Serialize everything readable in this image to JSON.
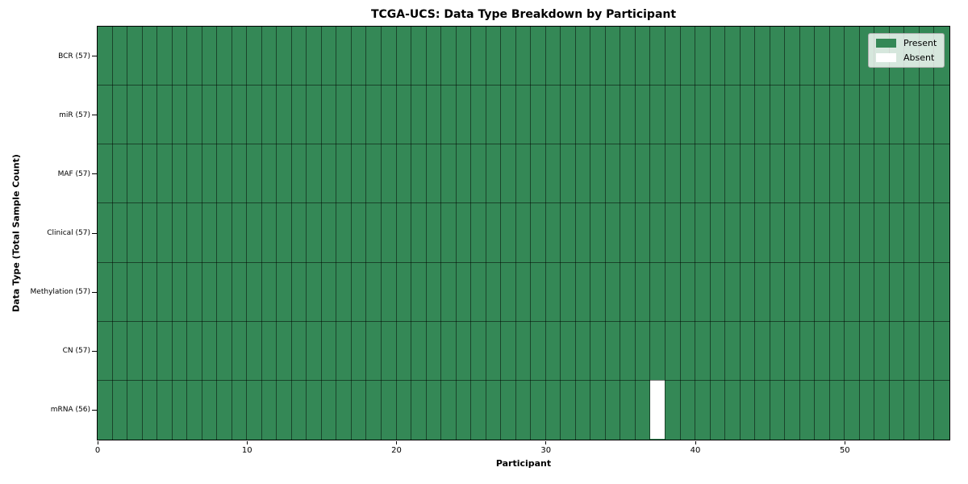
{
  "chart_data": {
    "type": "heatmap",
    "title": "TCGA-UCS: Data Type Breakdown by Participant",
    "xlabel": "Participant",
    "ylabel": "Data Type (Total Sample Count)",
    "n_participants": 57,
    "x_range": [
      0,
      57
    ],
    "x_ticks": [
      0,
      10,
      20,
      30,
      40,
      50
    ],
    "grid": true,
    "rows": [
      {
        "label": "BCR (57)",
        "data_type": "BCR",
        "total_samples": 57,
        "absent_participants": []
      },
      {
        "label": "miR (57)",
        "data_type": "miR",
        "total_samples": 57,
        "absent_participants": []
      },
      {
        "label": "MAF (57)",
        "data_type": "MAF",
        "total_samples": 57,
        "absent_participants": []
      },
      {
        "label": "Clinical (57)",
        "data_type": "Clinical",
        "total_samples": 57,
        "absent_participants": []
      },
      {
        "label": "Methylation (57)",
        "data_type": "Methylation",
        "total_samples": 57,
        "absent_participants": []
      },
      {
        "label": "CN (57)",
        "data_type": "CN",
        "total_samples": 57,
        "absent_participants": []
      },
      {
        "label": "mRNA (56)",
        "data_type": "mRNA",
        "total_samples": 56,
        "absent_participants": [
          37
        ]
      }
    ],
    "legend": {
      "position": "upper right",
      "items": [
        {
          "label": "Present",
          "color": "#348856"
        },
        {
          "label": "Absent",
          "color": "#ffffff"
        }
      ]
    },
    "colors": {
      "present": "#348856",
      "absent": "#ffffff",
      "grid_line": "rgba(0,0,0,0.5)",
      "plot_border": "#000000"
    }
  }
}
